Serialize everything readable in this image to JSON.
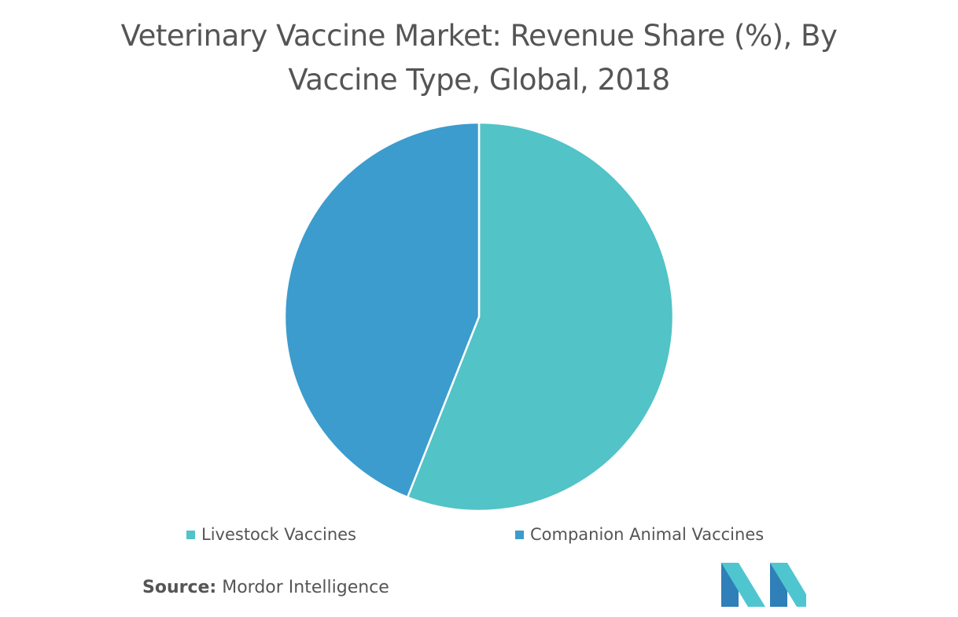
{
  "title": {
    "line1": "Veterinary Vaccine Market: Revenue Share (%), By",
    "line2": "Vaccine Type, Global, 2018"
  },
  "chart_data": {
    "type": "pie",
    "title": "Veterinary Vaccine Market: Revenue Share (%), By Vaccine Type, Global, 2018",
    "categories": [
      "Livestock Vaccines",
      "Companion Animal Vaccines"
    ],
    "values": [
      56,
      44
    ],
    "colors": [
      "#52c3c7",
      "#3c9ccd"
    ],
    "start_angle_deg": 0,
    "direction": "clockwise",
    "legend_position": "bottom"
  },
  "legend": {
    "items": [
      "Livestock Vaccines",
      "Companion Animal Vaccines"
    ]
  },
  "source": {
    "label": "Source:",
    "text": "Mordor Intelligence"
  },
  "colors": {
    "text": "#555555",
    "livestock": "#52c3c7",
    "companion": "#3c9ccd",
    "logo_dark": "#2f7fb8",
    "logo_light": "#4fc6cf"
  },
  "logo": {
    "icon": "mordor-intelligence-logo-icon"
  }
}
